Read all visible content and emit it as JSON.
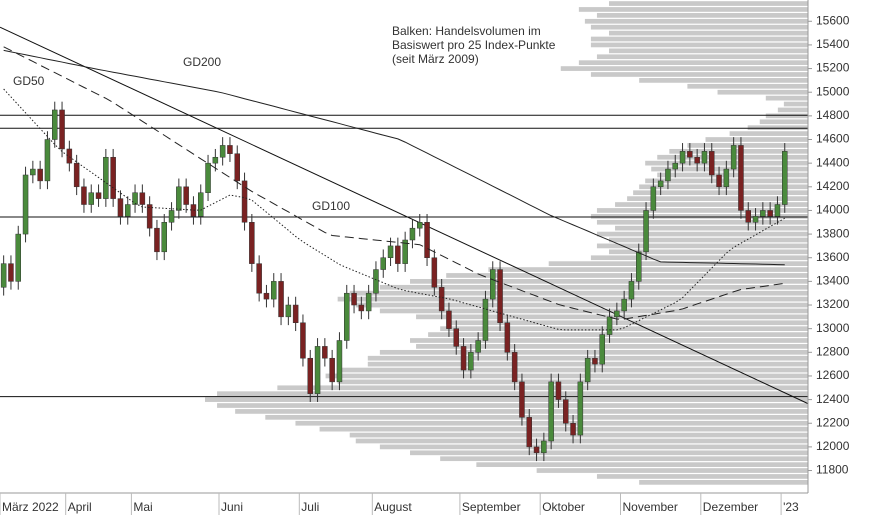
{
  "chart_data": {
    "type": "candlestick",
    "annotation": [
      "Balken: Handelsvolumen im",
      "Basiswert pro 25 Index-Punkte",
      "(seit März 2009)"
    ],
    "categories": [
      "März 2022",
      null,
      null,
      null,
      null,
      null,
      null,
      null,
      null,
      "April",
      null,
      null,
      null,
      null,
      null,
      null,
      null,
      null,
      "Mai",
      null,
      null,
      null,
      null,
      null,
      null,
      null,
      null,
      null,
      null,
      null,
      "Juni",
      null,
      null,
      null,
      null,
      null,
      null,
      null,
      null,
      null,
      null,
      "Juli",
      null,
      null,
      null,
      null,
      null,
      null,
      null,
      null,
      null,
      "August",
      null,
      null,
      null,
      null,
      null,
      null,
      null,
      null,
      null,
      null,
      null,
      "September",
      null,
      null,
      null,
      null,
      null,
      null,
      null,
      null,
      null,
      null,
      "Oktober",
      null,
      null,
      null,
      null,
      null,
      null,
      null,
      null,
      null,
      null,
      "November",
      null,
      null,
      null,
      null,
      null,
      null,
      null,
      null,
      null,
      null,
      "Dezember",
      null,
      null,
      null,
      null,
      null,
      null,
      null,
      null,
      null,
      null,
      "'23"
    ],
    "open": [
      13350,
      13550,
      13400,
      13800,
      14300,
      14350,
      14250,
      14600,
      14850,
      14520,
      14400,
      14200,
      14050,
      14150,
      14100,
      14450,
      14100,
      13950,
      14050,
      14150,
      14050,
      13850,
      13650,
      13900,
      14000,
      14200,
      14050,
      13950,
      14150,
      14400,
      14450,
      14550,
      14480,
      14250,
      13900,
      13550,
      13300,
      13250,
      13400,
      13100,
      13200,
      13050,
      12750,
      12450,
      12850,
      12750,
      12550,
      12900,
      13300,
      13200,
      13150,
      13300,
      13500,
      13600,
      13700,
      13550,
      13750,
      13850,
      13900,
      13600,
      13350,
      13150,
      13000,
      12850,
      12650,
      12800,
      12900,
      13250,
      13500,
      13050,
      12800,
      12550,
      12250,
      12000,
      11950,
      12050,
      12550,
      12400,
      12200,
      12100,
      12550,
      12750,
      12700,
      12950,
      13100,
      13150,
      13250,
      13400,
      13650,
      14000,
      14200,
      14250,
      14350,
      14400,
      14500,
      14450,
      14400,
      14500,
      14300,
      14200,
      14350,
      14550,
      14000,
      13900,
      13950,
      14000,
      13950,
      14050
    ],
    "high": [
      13620,
      13620,
      13870,
      14370,
      14420,
      14420,
      14670,
      14920,
      14920,
      14590,
      14470,
      14270,
      14220,
      14220,
      14520,
      14520,
      14170,
      14120,
      14220,
      14220,
      14120,
      13920,
      13970,
      14070,
      14270,
      14270,
      14120,
      14220,
      14470,
      14520,
      14620,
      14620,
      14550,
      14320,
      13970,
      13620,
      13370,
      13470,
      13470,
      13270,
      13270,
      13120,
      12820,
      12920,
      12920,
      12820,
      12970,
      13370,
      13370,
      13270,
      13370,
      13570,
      13670,
      13770,
      13770,
      13820,
      13920,
      13970,
      13970,
      13670,
      13420,
      13220,
      13070,
      12920,
      12870,
      12970,
      13320,
      13570,
      13570,
      13120,
      12870,
      12620,
      12320,
      12070,
      12120,
      12620,
      12620,
      12470,
      12270,
      12620,
      12820,
      12820,
      13020,
      13170,
      13220,
      13320,
      13470,
      13720,
      14070,
      14270,
      14320,
      14420,
      14470,
      14570,
      14570,
      14520,
      14570,
      14570,
      14370,
      14420,
      14620,
      14620,
      14070,
      14020,
      14070,
      14070,
      14120,
      14570
    ],
    "low": [
      13280,
      13330,
      13330,
      13730,
      14230,
      14180,
      14180,
      14530,
      14450,
      14330,
      14130,
      13980,
      13980,
      14030,
      14030,
      14030,
      13880,
      13880,
      13980,
      13980,
      13780,
      13580,
      13580,
      13830,
      13930,
      13980,
      13880,
      13880,
      14080,
      14330,
      14380,
      14410,
      14180,
      13830,
      13480,
      13230,
      13180,
      13180,
      13030,
      13030,
      12980,
      12680,
      12380,
      12380,
      12680,
      12480,
      12480,
      12830,
      13130,
      13080,
      13080,
      13230,
      13430,
      13530,
      13480,
      13480,
      13680,
      13780,
      13530,
      13280,
      13080,
      12930,
      12780,
      12580,
      12580,
      12730,
      12830,
      13180,
      12980,
      12730,
      12480,
      12180,
      11930,
      11880,
      11880,
      11980,
      12330,
      12130,
      12030,
      12030,
      12480,
      12630,
      12630,
      12880,
      13030,
      13080,
      13180,
      13330,
      13580,
      13930,
      14130,
      14180,
      14280,
      14330,
      14380,
      14330,
      14330,
      14230,
      14130,
      14130,
      14280,
      13930,
      13830,
      13830,
      13880,
      13880,
      13880,
      13980
    ],
    "close": [
      13550,
      13400,
      13800,
      14300,
      14350,
      14250,
      14600,
      14850,
      14520,
      14400,
      14200,
      14050,
      14150,
      14100,
      14450,
      14100,
      13950,
      14050,
      14150,
      14050,
      13850,
      13650,
      13900,
      14000,
      14200,
      14050,
      13950,
      14150,
      14400,
      14450,
      14550,
      14480,
      14250,
      13900,
      13550,
      13300,
      13250,
      13400,
      13100,
      13200,
      13050,
      12750,
      12450,
      12850,
      12750,
      12550,
      12900,
      13300,
      13200,
      13150,
      13300,
      13500,
      13600,
      13700,
      13550,
      13750,
      13850,
      13900,
      13600,
      13350,
      13150,
      13000,
      12850,
      12650,
      12800,
      12900,
      13250,
      13500,
      13050,
      12800,
      12550,
      12250,
      12000,
      11950,
      12050,
      12550,
      12400,
      12200,
      12100,
      12550,
      12750,
      12700,
      12950,
      13100,
      13150,
      13250,
      13400,
      13650,
      14000,
      14200,
      14250,
      14350,
      14400,
      14500,
      14450,
      14400,
      14500,
      14300,
      14200,
      14350,
      14550,
      14000,
      13900,
      13950,
      14000,
      13950,
      14050,
      14500
    ],
    "up_color": "#4a8a3c",
    "down_color": "#7a2222",
    "series": [
      {
        "name": "GD50",
        "color": "#222222",
        "style": "dotted",
        "values": [
          15027,
          14960,
          14893,
          14826,
          14759,
          14692,
          14625,
          14558,
          14498,
          14454,
          14410,
          14366,
          14323,
          14279,
          14235,
          14191,
          14147,
          14104,
          14060,
          14029,
          14025,
          14022,
          14018,
          14014,
          14011,
          14007,
          14003,
          14003,
          14035,
          14067,
          14098,
          14130,
          14119,
          14108,
          14087,
          14036,
          13985,
          13934,
          13883,
          13832,
          13780,
          13735,
          13696,
          13658,
          13620,
          13582,
          13543,
          13516,
          13491,
          13465,
          13440,
          13414,
          13389,
          13363,
          13338,
          13322,
          13310,
          13298,
          13287,
          13275,
          13263,
          13252,
          13236,
          13218,
          13201,
          13184,
          13166,
          13149,
          13132,
          13115,
          13097,
          13080,
          13063,
          13045,
          13028,
          13011,
          12994,
          12990,
          12990,
          12990,
          12990,
          12990,
          12990,
          12990,
          12990,
          13007,
          13038,
          13068,
          13099,
          13129,
          13159,
          13190,
          13220,
          13262,
          13325,
          13387,
          13450,
          13513,
          13576,
          13639,
          13688,
          13723,
          13758,
          13793,
          13829,
          13864,
          13899,
          13934
        ]
      },
      {
        "name": "GD100",
        "color": "#222222",
        "style": "dashed",
        "values": [
          15384,
          15353,
          15322,
          15291,
          15260,
          15228,
          15197,
          15166,
          15135,
          15104,
          15072,
          15041,
          15010,
          14979,
          14948,
          14913,
          14873,
          14834,
          14794,
          14754,
          14715,
          14675,
          14636,
          14596,
          14556,
          14517,
          14477,
          14437,
          14398,
          14358,
          14318,
          14279,
          14239,
          14200,
          14161,
          14126,
          14092,
          14057,
          14022,
          13988,
          13953,
          13918,
          13884,
          13849,
          13814,
          13788,
          13782,
          13775,
          13769,
          13762,
          13756,
          13749,
          13743,
          13736,
          13730,
          13723,
          13717,
          13710,
          13680,
          13649,
          13618,
          13587,
          13556,
          13525,
          13494,
          13463,
          13438,
          13414,
          13391,
          13368,
          13345,
          13321,
          13298,
          13275,
          13251,
          13228,
          13205,
          13188,
          13173,
          13158,
          13142,
          13127,
          13112,
          13097,
          13081,
          13081,
          13091,
          13102,
          13112,
          13122,
          13133,
          13143,
          13153,
          13167,
          13188,
          13209,
          13229,
          13250,
          13271,
          13291,
          13312,
          13331,
          13340,
          13349,
          13357,
          13366,
          13375,
          13384
        ]
      },
      {
        "name": "GD200",
        "color": "#222222",
        "style": "solid",
        "values": [
          15354,
          15341,
          15329,
          15317,
          15304,
          15292,
          15279,
          15267,
          15255,
          15242,
          15230,
          15217,
          15205,
          15192,
          15181,
          15169,
          15158,
          15146,
          15135,
          15123,
          15111,
          15100,
          15088,
          15077,
          15065,
          15054,
          15042,
          15030,
          15019,
          15007,
          14994,
          14978,
          14962,
          14945,
          14929,
          14913,
          14897,
          14881,
          14864,
          14848,
          14832,
          14816,
          14799,
          14783,
          14767,
          14751,
          14735,
          14718,
          14702,
          14686,
          14670,
          14653,
          14637,
          14621,
          14605,
          14578,
          14547,
          14516,
          14485,
          14454,
          14423,
          14392,
          14361,
          14330,
          14299,
          14268,
          14237,
          14205,
          14174,
          14143,
          14112,
          14080,
          14049,
          14018,
          13986,
          13956,
          13930,
          13904,
          13878,
          13852,
          13826,
          13799,
          13773,
          13747,
          13721,
          13695,
          13668,
          13642,
          13616,
          13589,
          13565,
          13563,
          13562,
          13561,
          13559,
          13558,
          13556,
          13555,
          13554,
          13552,
          13551,
          13549,
          13548,
          13547,
          13545,
          13544,
          13542,
          13541
        ]
      }
    ],
    "volume_profile": {
      "color": "#c9c9c9",
      "levels": [
        11700,
        11750,
        11800,
        11850,
        11900,
        11950,
        12000,
        12050,
        12100,
        12150,
        12200,
        12250,
        12300,
        12350,
        12400,
        12450,
        12500,
        12550,
        12600,
        12650,
        12700,
        12750,
        12800,
        12850,
        12900,
        12950,
        13000,
        13050,
        13100,
        13150,
        13200,
        13250,
        13300,
        13350,
        13400,
        13450,
        13500,
        13550,
        13600,
        13650,
        13700,
        13750,
        13800,
        13850,
        13900,
        13950,
        14000,
        14050,
        14100,
        14150,
        14200,
        14250,
        14300,
        14350,
        14400,
        14450,
        14500,
        14550,
        14600,
        14650,
        14700,
        14750,
        14800,
        14850,
        14900,
        14950,
        15000,
        15050,
        15100,
        15150,
        15200,
        15250,
        15300,
        15350,
        15400,
        15450,
        15500,
        15550,
        15600,
        15650,
        15700,
        15750
      ],
      "values": [
        28,
        35,
        45,
        55,
        61,
        66,
        71,
        75,
        76,
        81,
        85,
        90,
        95,
        98,
        100,
        98,
        88,
        78,
        80,
        78,
        73,
        73,
        71,
        65,
        66,
        63,
        61,
        60,
        65,
        71,
        75,
        78,
        76,
        71,
        66,
        60,
        53,
        43,
        36,
        33,
        35,
        33,
        35,
        32,
        35,
        36,
        35,
        32,
        30,
        29,
        28,
        27,
        25,
        26,
        27,
        25,
        23,
        20,
        17,
        13,
        10,
        8,
        7,
        5,
        4,
        7,
        15,
        20,
        28,
        36,
        41,
        38,
        35,
        33,
        36,
        36,
        33,
        36,
        37,
        35,
        38,
        33
      ]
    },
    "hlines": [
      12425,
      14805,
      14695,
      13945
    ],
    "trendline": [
      15550,
      12366
    ],
    "ylim": [
      11610,
      15780
    ],
    "yticks": [
      11800,
      12000,
      12200,
      12400,
      12600,
      12800,
      13000,
      13200,
      13400,
      13600,
      13800,
      14000,
      14200,
      14400,
      14600,
      14800,
      15000,
      15200,
      15400,
      15600
    ]
  }
}
